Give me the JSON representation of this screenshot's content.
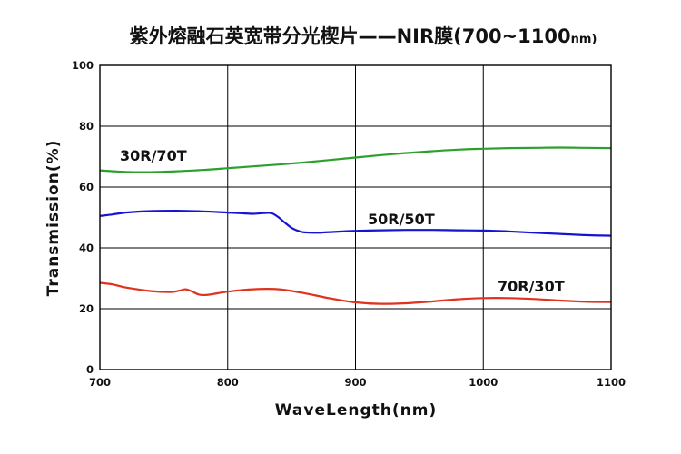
{
  "chart_data": {
    "type": "line",
    "title": "紫外熔融石英宽带分光楔片——NIR膜(700~1100",
    "title_suffix": "nm)",
    "xlabel": "WaveLength(nm)",
    "ylabel": "Transmission(%)",
    "xlim": [
      700,
      1100
    ],
    "ylim": [
      0,
      100
    ],
    "x_ticks": [
      "700",
      "800",
      "900",
      "1000",
      "1100"
    ],
    "y_ticks": [
      "0",
      "20",
      "40",
      "60",
      "80",
      "100"
    ],
    "grid": true,
    "series": [
      {
        "name": "30R/70T",
        "color": "#2ca02c",
        "x": [
          700,
          720,
          740,
          760,
          780,
          800,
          820,
          840,
          860,
          880,
          900,
          920,
          940,
          960,
          980,
          1000,
          1020,
          1040,
          1060,
          1080,
          1100
        ],
        "y": [
          65.5,
          65.0,
          64.9,
          65.2,
          65.6,
          66.2,
          66.8,
          67.4,
          68.1,
          68.9,
          69.7,
          70.5,
          71.2,
          71.8,
          72.3,
          72.6,
          72.8,
          72.9,
          73.0,
          72.9,
          72.8
        ]
      },
      {
        "name": "50R/50T",
        "color": "#1414d2",
        "x": [
          700,
          710,
          720,
          740,
          760,
          780,
          800,
          810,
          820,
          830,
          835,
          840,
          845,
          850,
          855,
          860,
          870,
          880,
          900,
          920,
          940,
          960,
          980,
          1000,
          1020,
          1040,
          1060,
          1080,
          1100
        ],
        "y": [
          50.5,
          51.0,
          51.6,
          52.1,
          52.2,
          52.0,
          51.6,
          51.4,
          51.2,
          51.5,
          51.3,
          50.0,
          48.2,
          46.6,
          45.6,
          45.1,
          45.0,
          45.2,
          45.6,
          45.8,
          45.9,
          45.9,
          45.8,
          45.7,
          45.4,
          45.0,
          44.6,
          44.2,
          44.0
        ]
      },
      {
        "name": "70R/30T",
        "color": "#e0321e",
        "x": [
          700,
          710,
          720,
          740,
          755,
          762,
          767,
          772,
          778,
          785,
          800,
          820,
          840,
          860,
          880,
          900,
          920,
          940,
          960,
          980,
          1000,
          1020,
          1040,
          1060,
          1080,
          1100
        ],
        "y": [
          28.5,
          28.0,
          27.0,
          25.8,
          25.5,
          25.9,
          26.4,
          25.7,
          24.6,
          24.6,
          25.6,
          26.4,
          26.4,
          25.1,
          23.4,
          22.1,
          21.6,
          21.8,
          22.4,
          23.1,
          23.5,
          23.5,
          23.2,
          22.7,
          22.3,
          22.2
        ]
      }
    ],
    "annotations": [
      "30R/70T",
      "50R/50T",
      "70R/30T"
    ]
  }
}
